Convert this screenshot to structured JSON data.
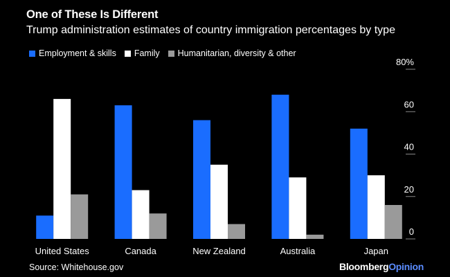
{
  "colors": {
    "background": "#000000",
    "text": "#ffffff",
    "employment": "#1a6dff",
    "family": "#ffffff",
    "humanitarian": "#9a9a9a",
    "brand_accent": "#5a8cff",
    "tick": "#888888"
  },
  "chart_data": {
    "type": "bar",
    "title": "One of These Is Different",
    "subtitle": "Trump administration estimates of country immigration percentages by type",
    "categories": [
      "United States",
      "Canada",
      "New Zealand",
      "Australia",
      "Japan"
    ],
    "series": [
      {
        "name": "Employment & skills",
        "color_key": "employment",
        "values": [
          11,
          63,
          56,
          68,
          52
        ]
      },
      {
        "name": "Family",
        "color_key": "family",
        "values": [
          66,
          23,
          35,
          29,
          30
        ]
      },
      {
        "name": "Humanitarian, diversity & other",
        "color_key": "humanitarian",
        "values": [
          21,
          12,
          7,
          2,
          16
        ]
      }
    ],
    "ylim": [
      0,
      80
    ],
    "yticks": [
      0,
      20,
      40,
      60,
      80
    ],
    "ytick_labels": [
      "0",
      "20",
      "40",
      "60",
      "80%"
    ],
    "xlabel": "",
    "ylabel": "",
    "legend_position": "top-left",
    "grid": false
  },
  "footer": {
    "source": "Source: Whitehouse.gov",
    "brand_main": "Bloomberg",
    "brand_accent": "Opinion"
  }
}
